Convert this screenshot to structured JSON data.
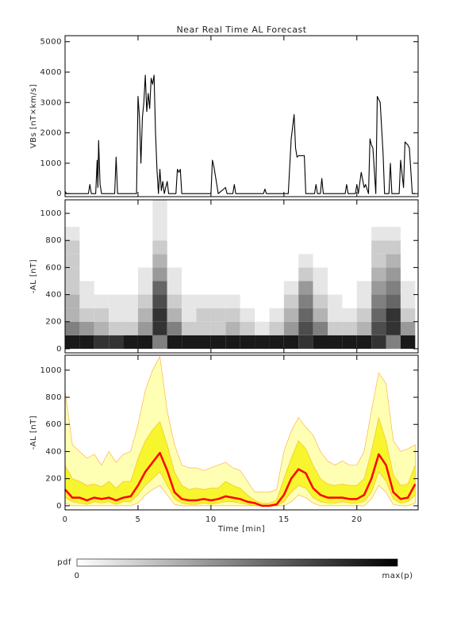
{
  "chart_data": [
    {
      "type": "line",
      "title": "Near Real Time AL Forecast",
      "ylabel": "VBs [nT×km/s]",
      "xlim": [
        0,
        24.2
      ],
      "xticks": [
        0,
        5,
        10,
        15,
        20
      ],
      "ylim": [
        -100,
        5200
      ],
      "yticks": [
        0,
        1000,
        2000,
        3000,
        4000,
        5000
      ],
      "x": [
        0,
        0.1,
        1.6,
        1.7,
        1.8,
        2.1,
        2.2,
        2.25,
        2.3,
        2.4,
        2.5,
        3.4,
        3.5,
        3.6,
        4.9,
        5.0,
        5.1,
        5.2,
        5.3,
        5.4,
        5.5,
        5.6,
        5.7,
        5.8,
        5.9,
        6.0,
        6.1,
        6.2,
        6.3,
        6.4,
        6.5,
        6.6,
        6.7,
        6.8,
        7.0,
        7.1,
        7.6,
        7.7,
        7.8,
        7.9,
        8.0,
        10.0,
        10.1,
        10.2,
        10.4,
        10.5,
        11.0,
        11.1,
        11.5,
        11.6,
        11.7,
        13.6,
        13.7,
        13.8,
        15.3,
        15.5,
        15.7,
        15.8,
        15.9,
        16.0,
        16.4,
        16.5,
        17.1,
        17.2,
        17.3,
        17.5,
        17.6,
        17.7,
        19.2,
        19.3,
        19.4,
        19.9,
        20.0,
        20.1,
        20.3,
        20.5,
        20.6,
        20.8,
        20.9,
        21.0,
        21.1,
        21.3,
        21.4,
        21.6,
        21.8,
        21.9,
        22.2,
        22.3,
        22.4,
        22.9,
        23.0,
        23.2,
        23.3,
        23.5,
        23.6,
        23.8,
        24.0
      ],
      "series": [
        {
          "color": "#000000",
          "values": [
            80,
            0,
            0,
            300,
            0,
            0,
            1100,
            200,
            1750,
            300,
            0,
            0,
            1200,
            0,
            0,
            3200,
            2500,
            1000,
            2500,
            3000,
            3900,
            2700,
            3300,
            2800,
            3800,
            3600,
            3900,
            2000,
            800,
            0,
            800,
            100,
            400,
            0,
            400,
            0,
            0,
            800,
            700,
            800,
            0,
            0,
            1100,
            900,
            300,
            0,
            200,
            0,
            0,
            300,
            0,
            0,
            150,
            0,
            0,
            1800,
            2600,
            1500,
            1200,
            1250,
            1250,
            0,
            0,
            300,
            0,
            0,
            500,
            0,
            0,
            300,
            0,
            0,
            300,
            0,
            700,
            200,
            300,
            0,
            1800,
            1600,
            1500,
            0,
            3200,
            3000,
            1300,
            0,
            0,
            1000,
            0,
            0,
            1100,
            200,
            1700,
            1600,
            1500,
            0,
            0
          ]
        }
      ]
    },
    {
      "type": "heatmap",
      "ylabel": "-AL [nT]",
      "xlim": [
        0,
        24.2
      ],
      "xticks": [
        0,
        5,
        10,
        15,
        20
      ],
      "ylim": [
        -30,
        1100
      ],
      "yticks": [
        0,
        200,
        400,
        600,
        800,
        1000
      ],
      "xbins": [
        0,
        1,
        2,
        3,
        4,
        5,
        6,
        7,
        8,
        9,
        10,
        11,
        12,
        13,
        14,
        15,
        16,
        17,
        18,
        19,
        20,
        21,
        22,
        23,
        24
      ],
      "ybins": [
        0,
        100,
        200,
        300,
        400,
        500,
        600,
        700,
        800,
        900,
        1000,
        1100
      ],
      "z": [
        [
          0.9,
          0.9,
          0.8,
          0.8,
          0.9,
          0.9,
          0.5,
          0.9,
          0.9,
          0.9,
          0.9,
          0.9,
          0.9,
          0.9,
          0.9,
          0.9,
          0.8,
          0.9,
          0.9,
          0.9,
          0.9,
          0.8,
          0.5,
          0.9
        ],
        [
          0.5,
          0.4,
          0.3,
          0.2,
          0.2,
          0.4,
          0.8,
          0.5,
          0.2,
          0.2,
          0.2,
          0.3,
          0.2,
          0.1,
          0.2,
          0.4,
          0.7,
          0.5,
          0.2,
          0.2,
          0.3,
          0.7,
          0.8,
          0.4
        ],
        [
          0.3,
          0.2,
          0.2,
          0.1,
          0.1,
          0.3,
          0.8,
          0.3,
          0.1,
          0.2,
          0.2,
          0.2,
          0.1,
          0,
          0.1,
          0.3,
          0.6,
          0.3,
          0.1,
          0.1,
          0.2,
          0.6,
          0.8,
          0.2
        ],
        [
          0.3,
          0.1,
          0.1,
          0.1,
          0.1,
          0.2,
          0.7,
          0.2,
          0.1,
          0.1,
          0.1,
          0.1,
          0,
          0,
          0,
          0.2,
          0.5,
          0.2,
          0.1,
          0,
          0.1,
          0.5,
          0.6,
          0.1
        ],
        [
          0.2,
          0.1,
          0,
          0,
          0,
          0.1,
          0.6,
          0.1,
          0,
          0,
          0,
          0,
          0,
          0,
          0,
          0.1,
          0.4,
          0.1,
          0,
          0,
          0.1,
          0.4,
          0.5,
          0.1
        ],
        [
          0.2,
          0,
          0,
          0,
          0,
          0.1,
          0.4,
          0.1,
          0,
          0,
          0,
          0,
          0,
          0,
          0,
          0,
          0.2,
          0.1,
          0,
          0,
          0,
          0.3,
          0.4,
          0
        ],
        [
          0.2,
          0,
          0,
          0,
          0,
          0,
          0.3,
          0,
          0,
          0,
          0,
          0,
          0,
          0,
          0,
          0,
          0.1,
          0,
          0,
          0,
          0,
          0.2,
          0.3,
          0
        ],
        [
          0.2,
          0,
          0,
          0,
          0,
          0,
          0.2,
          0,
          0,
          0,
          0,
          0,
          0,
          0,
          0,
          0,
          0,
          0,
          0,
          0,
          0,
          0.2,
          0.2,
          0
        ],
        [
          0.1,
          0,
          0,
          0,
          0,
          0,
          0.1,
          0,
          0,
          0,
          0,
          0,
          0,
          0,
          0,
          0,
          0,
          0,
          0,
          0,
          0,
          0.1,
          0.1,
          0
        ],
        [
          0,
          0,
          0,
          0,
          0,
          0,
          0.1,
          0,
          0,
          0,
          0,
          0,
          0,
          0,
          0,
          0,
          0,
          0,
          0,
          0,
          0,
          0,
          0,
          0
        ],
        [
          0,
          0,
          0,
          0,
          0,
          0,
          0.1,
          0,
          0,
          0,
          0,
          0,
          0,
          0,
          0,
          0,
          0,
          0,
          0,
          0,
          0,
          0,
          0,
          0
        ]
      ]
    },
    {
      "type": "line",
      "ylabel": "-AL [nT]",
      "xlabel": "Time [min]",
      "xlim": [
        0,
        24.2
      ],
      "xticks": [
        0,
        5,
        10,
        15,
        20
      ],
      "ylim": [
        -30,
        1110
      ],
      "yticks": [
        0,
        200,
        400,
        600,
        800,
        1000
      ],
      "x": [
        0,
        0.5,
        1,
        1.5,
        2,
        2.5,
        3,
        3.5,
        4,
        4.5,
        5,
        5.5,
        6,
        6.5,
        7,
        7.5,
        8,
        8.5,
        9,
        9.5,
        10,
        10.5,
        11,
        11.5,
        12,
        12.5,
        13,
        13.5,
        14,
        14.5,
        15,
        15.5,
        16,
        16.5,
        17,
        17.5,
        18,
        18.5,
        19,
        19.5,
        20,
        20.5,
        21,
        21.5,
        22,
        22.5,
        23,
        23.5,
        24
      ],
      "bands": [
        {
          "color": "#ffffb4",
          "edge_color": "#ffb347",
          "lower": [
            20,
            0,
            0,
            0,
            0,
            0,
            0,
            0,
            0,
            0,
            20,
            80,
            120,
            150,
            80,
            10,
            0,
            0,
            0,
            0,
            0,
            0,
            0,
            0,
            0,
            0,
            0,
            0,
            0,
            0,
            0,
            30,
            80,
            60,
            20,
            0,
            0,
            0,
            0,
            0,
            0,
            0,
            50,
            150,
            100,
            10,
            0,
            0,
            20
          ],
          "upper": [
            850,
            450,
            400,
            350,
            380,
            300,
            400,
            320,
            380,
            400,
            600,
            850,
            1000,
            1100,
            700,
            450,
            300,
            280,
            280,
            260,
            280,
            300,
            320,
            280,
            260,
            180,
            100,
            100,
            100,
            120,
            400,
            550,
            650,
            580,
            520,
            400,
            330,
            300,
            330,
            300,
            300,
            400,
            700,
            980,
            900,
            480,
            400,
            420,
            450
          ]
        },
        {
          "color": "#f7f52e",
          "edge_color": "#f5c030",
          "lower": [
            60,
            30,
            20,
            10,
            30,
            20,
            30,
            10,
            30,
            30,
            80,
            150,
            200,
            250,
            150,
            50,
            20,
            10,
            10,
            20,
            10,
            20,
            30,
            30,
            20,
            10,
            0,
            0,
            0,
            0,
            30,
            100,
            150,
            130,
            60,
            30,
            20,
            20,
            30,
            20,
            20,
            30,
            100,
            250,
            180,
            50,
            20,
            30,
            80
          ],
          "upper": [
            300,
            200,
            180,
            150,
            160,
            140,
            180,
            130,
            180,
            180,
            350,
            480,
            560,
            620,
            450,
            250,
            150,
            120,
            130,
            120,
            130,
            130,
            180,
            150,
            130,
            80,
            40,
            20,
            20,
            40,
            200,
            350,
            480,
            420,
            300,
            200,
            160,
            150,
            160,
            150,
            150,
            200,
            400,
            650,
            480,
            230,
            150,
            160,
            300
          ]
        }
      ],
      "series": [
        {
          "color": "#ff0000",
          "values": [
            120,
            60,
            60,
            40,
            60,
            50,
            60,
            40,
            60,
            70,
            150,
            250,
            320,
            390,
            260,
            100,
            50,
            40,
            40,
            50,
            40,
            50,
            70,
            60,
            50,
            30,
            20,
            0,
            0,
            10,
            80,
            200,
            270,
            240,
            130,
            80,
            60,
            60,
            60,
            50,
            50,
            80,
            200,
            380,
            300,
            100,
            50,
            60,
            160
          ]
        }
      ]
    }
  ],
  "colorbar": {
    "label": "pdf",
    "min_label": "0",
    "max_label": "max(p)"
  }
}
